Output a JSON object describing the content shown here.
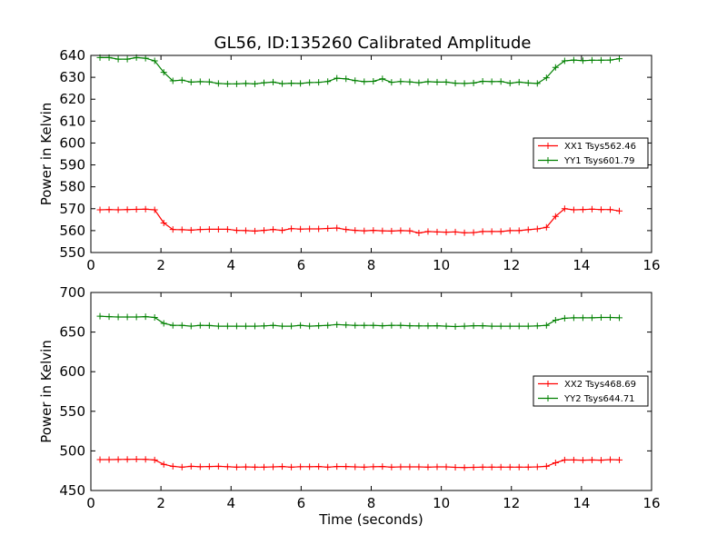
{
  "title": "GL56, ID:135260 Calibrated Amplitude",
  "chart_data": [
    {
      "type": "line",
      "title": "GL56, ID:135260 Calibrated Amplitude",
      "xlabel": "",
      "ylabel": "Power in Kelvin",
      "xlim": [
        0,
        16
      ],
      "ylim": [
        550,
        640
      ],
      "xticks": [
        0,
        2,
        4,
        6,
        8,
        10,
        12,
        14,
        16
      ],
      "yticks": [
        550,
        560,
        570,
        580,
        590,
        600,
        610,
        620,
        630,
        640
      ],
      "grid": false,
      "legend_position": "center-right",
      "x": [
        0.26,
        0.52,
        0.78,
        1.04,
        1.3,
        1.56,
        1.82,
        2.08,
        2.34,
        2.6,
        2.86,
        3.12,
        3.38,
        3.64,
        3.9,
        4.16,
        4.42,
        4.68,
        4.94,
        5.2,
        5.46,
        5.72,
        5.98,
        6.24,
        6.5,
        6.76,
        7.02,
        7.28,
        7.54,
        7.8,
        8.06,
        8.32,
        8.58,
        8.84,
        9.1,
        9.36,
        9.62,
        9.88,
        10.14,
        10.4,
        10.66,
        10.92,
        11.18,
        11.44,
        11.7,
        11.96,
        12.22,
        12.48,
        12.74,
        13.0,
        13.26,
        13.52,
        13.78,
        14.04,
        14.3,
        14.56,
        14.82,
        15.08
      ],
      "series": [
        {
          "name": "XX1 Tsys562.46",
          "color": "#ff0000",
          "values": [
            569.5,
            569.6,
            569.5,
            569.6,
            569.7,
            569.8,
            569.5,
            563.5,
            560.5,
            560.4,
            560.2,
            560.5,
            560.6,
            560.6,
            560.6,
            560.1,
            560.0,
            559.8,
            560.1,
            560.5,
            560.1,
            560.9,
            560.7,
            560.8,
            560.8,
            561.0,
            561.2,
            560.5,
            560.1,
            559.9,
            560.1,
            559.9,
            559.8,
            560.0,
            559.9,
            558.9,
            559.6,
            559.4,
            559.3,
            559.4,
            559.0,
            559.1,
            559.6,
            559.6,
            559.6,
            560.0,
            560.0,
            560.4,
            560.8,
            561.5,
            566.5,
            570.0,
            569.5,
            569.6,
            569.8,
            569.6,
            569.6,
            569.0
          ]
        },
        {
          "name": "YY1 Tsys601.79",
          "color": "#008000",
          "values": [
            639.0,
            639.0,
            638.3,
            638.3,
            639.0,
            638.7,
            637.5,
            632.3,
            628.4,
            628.7,
            627.8,
            628.0,
            627.9,
            627.2,
            627.0,
            627.0,
            627.2,
            627.0,
            627.5,
            627.8,
            627.1,
            627.3,
            627.2,
            627.6,
            627.7,
            628.1,
            629.6,
            629.3,
            628.5,
            628.0,
            628.2,
            629.3,
            627.7,
            628.1,
            627.9,
            627.5,
            628.0,
            627.8,
            627.8,
            627.3,
            627.2,
            627.4,
            628.2,
            628.0,
            628.1,
            627.3,
            627.8,
            627.4,
            627.2,
            629.8,
            634.5,
            637.5,
            637.9,
            637.6,
            637.8,
            637.8,
            637.9,
            638.5
          ]
        }
      ]
    },
    {
      "type": "line",
      "title": "",
      "xlabel": "Time (seconds)",
      "ylabel": "Power in Kelvin",
      "xlim": [
        0,
        16
      ],
      "ylim": [
        450,
        700
      ],
      "xticks": [
        0,
        2,
        4,
        6,
        8,
        10,
        12,
        14,
        16
      ],
      "yticks": [
        450,
        500,
        550,
        600,
        650,
        700
      ],
      "grid": false,
      "legend_position": "center-right",
      "x": [
        0.26,
        0.52,
        0.78,
        1.04,
        1.3,
        1.56,
        1.82,
        2.08,
        2.34,
        2.6,
        2.86,
        3.12,
        3.38,
        3.64,
        3.9,
        4.16,
        4.42,
        4.68,
        4.94,
        5.2,
        5.46,
        5.72,
        5.98,
        6.24,
        6.5,
        6.76,
        7.02,
        7.28,
        7.54,
        7.8,
        8.06,
        8.32,
        8.58,
        8.84,
        9.1,
        9.36,
        9.62,
        9.88,
        10.14,
        10.4,
        10.66,
        10.92,
        11.18,
        11.44,
        11.7,
        11.96,
        12.22,
        12.48,
        12.74,
        13.0,
        13.26,
        13.52,
        13.78,
        14.04,
        14.3,
        14.56,
        14.82,
        15.08
      ],
      "series": [
        {
          "name": "XX2 Tsys468.69",
          "color": "#ff0000",
          "values": [
            489.0,
            489.0,
            489.2,
            489.3,
            489.5,
            489.3,
            488.5,
            483.0,
            480.5,
            479.5,
            480.5,
            480.0,
            480.3,
            480.5,
            480.0,
            479.5,
            479.8,
            479.5,
            479.5,
            479.8,
            480.3,
            479.5,
            480.0,
            480.0,
            480.3,
            479.5,
            480.3,
            480.3,
            479.8,
            479.5,
            480.0,
            480.3,
            479.5,
            479.8,
            479.8,
            479.8,
            479.5,
            479.8,
            479.8,
            479.3,
            479.0,
            479.3,
            479.5,
            479.5,
            479.5,
            479.5,
            479.5,
            479.5,
            479.8,
            480.5,
            485.0,
            488.5,
            488.5,
            488.3,
            488.5,
            488.3,
            489.0,
            488.5
          ]
        },
        {
          "name": "YY2 Tsys644.71",
          "color": "#008000",
          "values": [
            670.0,
            669.5,
            669.0,
            669.0,
            669.0,
            669.5,
            668.5,
            661.0,
            658.5,
            658.5,
            657.5,
            658.5,
            658.3,
            657.5,
            657.5,
            657.5,
            657.5,
            657.5,
            657.8,
            658.5,
            657.5,
            657.5,
            658.5,
            657.5,
            658.0,
            658.5,
            659.5,
            659.0,
            658.5,
            658.5,
            658.5,
            658.0,
            658.5,
            658.5,
            658.0,
            657.8,
            657.8,
            658.0,
            657.5,
            657.0,
            657.5,
            658.0,
            658.0,
            657.5,
            657.5,
            657.5,
            657.5,
            657.5,
            657.8,
            658.5,
            665.0,
            667.5,
            668.0,
            668.0,
            668.0,
            668.5,
            668.5,
            668.0
          ]
        }
      ]
    }
  ]
}
